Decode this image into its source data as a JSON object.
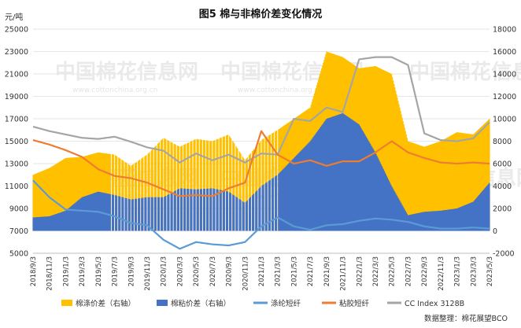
{
  "chart_data": {
    "type": "area",
    "title": "图5 棉与非棉价差变化情况",
    "left_unit": "元/吨",
    "source_note": "数据整理：棉花展望BCO",
    "left_axis": {
      "ylim": [
        5000,
        25000
      ],
      "ticks": [
        "5000",
        "7000",
        "9000",
        "11000",
        "13000",
        "15000",
        "17000",
        "19000",
        "21000",
        "23000",
        "25000"
      ]
    },
    "right_axis": {
      "ylim": [
        -2000,
        18000
      ],
      "ticks": [
        "-2000",
        "0",
        "2000",
        "4000",
        "6000",
        "8000",
        "10000",
        "12000",
        "14000",
        "16000",
        "18000"
      ]
    },
    "x_labels": [
      "2018/9/3",
      "2018/11/3",
      "2019/1/3",
      "2019/3/3",
      "2019/5/3",
      "2019/7/3",
      "2019/9/3",
      "2019/11/3",
      "2020/1/3",
      "2020/3/3",
      "2020/5/3",
      "2020/7/3",
      "2020/9/3",
      "2020/11/3",
      "2021/1/3",
      "2021/3/3",
      "2021/5/3",
      "2021/7/3",
      "2021/9/3",
      "2021/11/3",
      "2022/1/3",
      "2022/3/3",
      "2022/5/3",
      "2022/7/3",
      "2022/9/3",
      "2022/11/3",
      "2023/1/3",
      "2023/3/3",
      "2023/5/3"
    ],
    "watermark": {
      "text": "中国棉花信息网",
      "sub": "www.cottonchina.org.cn"
    },
    "legend": [
      {
        "name": "棉涤价差（右轴）",
        "color": "#FFC000",
        "kind": "area"
      },
      {
        "name": "棉粘价差（右轴）",
        "color": "#4472C4",
        "kind": "area"
      },
      {
        "name": "涤纶短纤",
        "color": "#5B9BD5",
        "kind": "line"
      },
      {
        "name": "粘胶短纤",
        "color": "#ED7D31",
        "kind": "line"
      },
      {
        "name": "CC Index 3128B",
        "color": "#A5A5A5",
        "kind": "line"
      }
    ],
    "series": [
      {
        "name": "CC Index 3128B",
        "axis": "left",
        "color": "#A5A5A5",
        "values": [
          16300,
          15900,
          15600,
          15300,
          15200,
          15400,
          14950,
          14450,
          14150,
          13100,
          13900,
          13300,
          13800,
          13100,
          13900,
          13800,
          17000,
          16800,
          18000,
          17600,
          22300,
          22500,
          22500,
          21800,
          15700,
          15100,
          15000,
          15250,
          16700
        ]
      },
      {
        "name": "粘胶短纤",
        "axis": "left",
        "color": "#ED7D31",
        "values": [
          15100,
          14700,
          14200,
          13600,
          12500,
          11900,
          11700,
          11300,
          10700,
          10100,
          10200,
          10100,
          10800,
          11300,
          15900,
          13800,
          13000,
          13300,
          12800,
          13200,
          13200,
          14000,
          15000,
          14000,
          13500,
          13100,
          13000,
          13100,
          13000
        ]
      },
      {
        "name": "涤纶短纤",
        "axis": "left",
        "color": "#5B9BD5",
        "values": [
          11500,
          10000,
          8900,
          8800,
          8700,
          8300,
          7700,
          7500,
          6200,
          5400,
          6000,
          5800,
          5700,
          6000,
          7400,
          8200,
          7400,
          7100,
          7500,
          7600,
          7900,
          8100,
          8000,
          7800,
          7400,
          7200,
          7200,
          7300,
          7200
        ]
      },
      {
        "name": "棉涤价差（右轴）",
        "axis": "right",
        "color": "#FFC000",
        "values": [
          5000,
          5600,
          6500,
          6600,
          7000,
          6800,
          5800,
          6800,
          8300,
          7500,
          8200,
          8000,
          8600,
          6300,
          8100,
          9000,
          10000,
          11000,
          16000,
          15500,
          14500,
          14700,
          14000,
          8000,
          7500,
          8000,
          8800,
          8600,
          10000
        ]
      },
      {
        "name": "棉粘价差（右轴）",
        "axis": "right",
        "color": "#4472C4",
        "values": [
          1200,
          1300,
          1800,
          3000,
          3500,
          3200,
          2800,
          3000,
          3000,
          3800,
          3700,
          3800,
          3500,
          2500,
          4000,
          5000,
          6500,
          8000,
          10000,
          10500,
          9500,
          7000,
          4000,
          1400,
          1700,
          1800,
          2000,
          2600,
          4300
        ]
      }
    ]
  }
}
